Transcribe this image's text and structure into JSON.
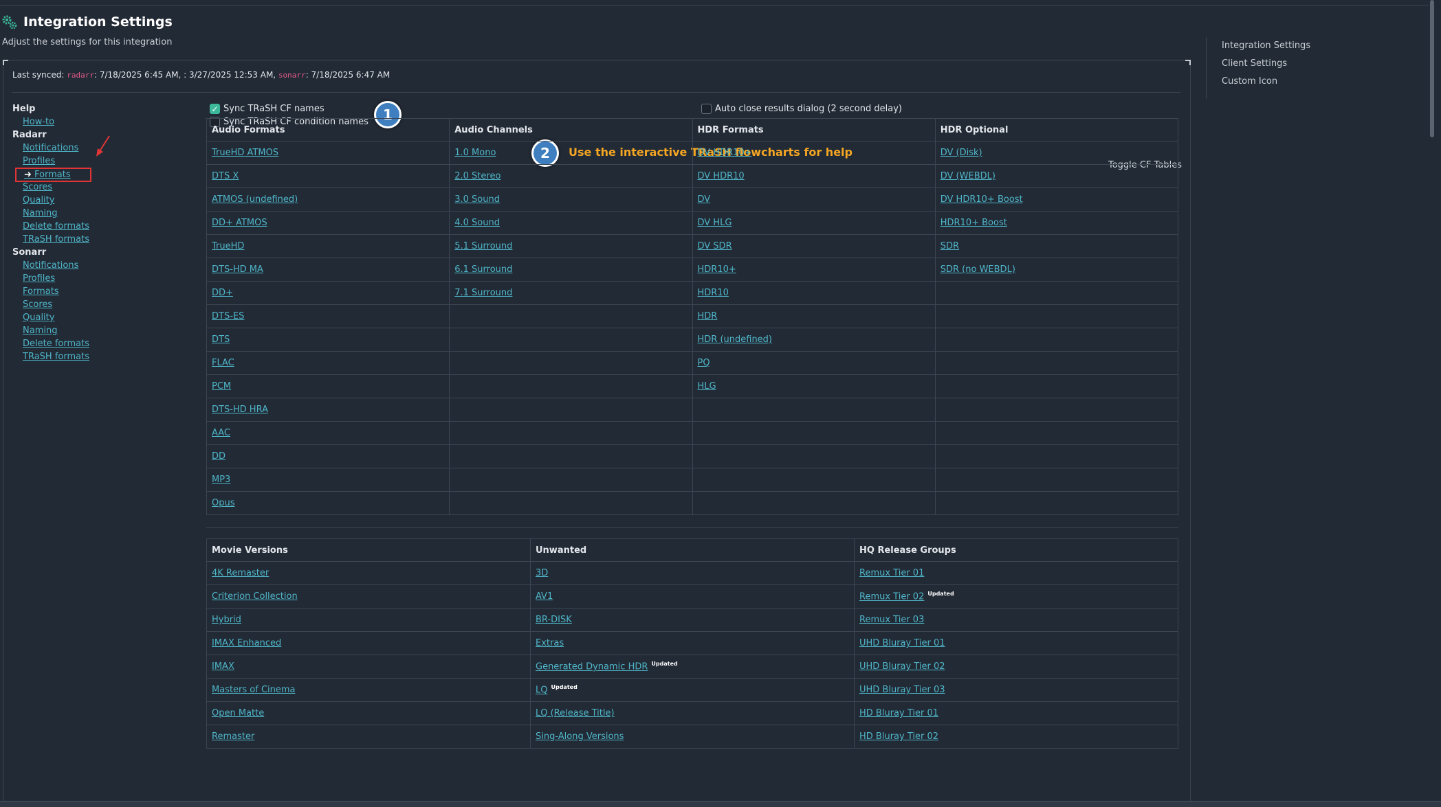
{
  "header": {
    "title": "Integration Settings",
    "subtitle": "Adjust the settings for this integration"
  },
  "last_synced": {
    "prefix": "Last synced: ",
    "radarr_tag": "radarr",
    "radarr_time": ": 7/18/2025 6:45 AM, ",
    "blank_time": ": 3/27/2025 12:53 AM, ",
    "sonarr_tag": "sonarr",
    "sonarr_time": ": 7/18/2025 6:47 AM"
  },
  "left_nav": {
    "help": {
      "label": "Help",
      "items": [
        "How-to"
      ]
    },
    "radarr": {
      "label": "Radarr",
      "items": [
        "Notifications",
        "Profiles",
        "Formats",
        "Scores",
        "Quality",
        "Naming",
        "Delete formats",
        "TRaSH formats"
      ],
      "active": "Formats"
    },
    "sonarr": {
      "label": "Sonarr",
      "items": [
        "Notifications",
        "Profiles",
        "Formats",
        "Scores",
        "Quality",
        "Naming",
        "Delete formats",
        "TRaSH formats"
      ]
    }
  },
  "options": {
    "sync_cf_names": {
      "label": "Sync TRaSH CF names",
      "checked": true
    },
    "sync_cf_condition_names": {
      "label": "Sync TRaSH CF condition names",
      "checked": false
    },
    "auto_close": {
      "label": "Auto close results dialog (2 second delay)",
      "checked": false
    }
  },
  "badges": {
    "one": "1",
    "two": "2"
  },
  "flowchart_link": "Use the interactive TRaSH flowcharts for help",
  "toggle_cf_tables": "Toggle CF Tables",
  "table1": {
    "headers": [
      "Audio Formats",
      "Audio Channels",
      "HDR Formats",
      "HDR Optional"
    ],
    "rows": [
      [
        "TrueHD ATMOS",
        "1.0 Mono",
        "DV HDR10+",
        "DV (Disk)"
      ],
      [
        "DTS X",
        "2.0 Stereo",
        "DV HDR10",
        "DV (WEBDL)"
      ],
      [
        "ATMOS (undefined)",
        "3.0 Sound",
        "DV",
        "DV HDR10+ Boost"
      ],
      [
        "DD+ ATMOS",
        "4.0 Sound",
        "DV HLG",
        "HDR10+ Boost"
      ],
      [
        "TrueHD",
        "5.1 Surround",
        "DV SDR",
        "SDR"
      ],
      [
        "DTS-HD MA",
        "6.1 Surround",
        "HDR10+",
        "SDR (no WEBDL)"
      ],
      [
        "DD+",
        "7.1 Surround",
        "HDR10",
        ""
      ],
      [
        "DTS-ES",
        "",
        "HDR",
        ""
      ],
      [
        "DTS",
        "",
        "HDR (undefined)",
        ""
      ],
      [
        "FLAC",
        "",
        "PQ",
        ""
      ],
      [
        "PCM",
        "",
        "HLG",
        ""
      ],
      [
        "DTS-HD HRA",
        "",
        "",
        ""
      ],
      [
        "AAC",
        "",
        "",
        ""
      ],
      [
        "DD",
        "",
        "",
        ""
      ],
      [
        "MP3",
        "",
        "",
        ""
      ],
      [
        "Opus",
        "",
        "",
        ""
      ]
    ]
  },
  "table2": {
    "headers": [
      "Movie Versions",
      "Unwanted",
      "HQ Release Groups"
    ],
    "updated_label": "Updated",
    "rows": [
      [
        {
          "t": "4K Remaster"
        },
        {
          "t": "3D"
        },
        {
          "t": "Remux Tier 01"
        }
      ],
      [
        {
          "t": "Criterion Collection"
        },
        {
          "t": "AV1"
        },
        {
          "t": "Remux Tier 02",
          "u": true
        }
      ],
      [
        {
          "t": "Hybrid"
        },
        {
          "t": "BR-DISK"
        },
        {
          "t": "Remux Tier 03"
        }
      ],
      [
        {
          "t": "IMAX Enhanced"
        },
        {
          "t": "Extras"
        },
        {
          "t": "UHD Bluray Tier 01"
        }
      ],
      [
        {
          "t": "IMAX"
        },
        {
          "t": "Generated Dynamic HDR",
          "u": true
        },
        {
          "t": "UHD Bluray Tier 02"
        }
      ],
      [
        {
          "t": "Masters of Cinema"
        },
        {
          "t": "LQ",
          "u": true
        },
        {
          "t": "UHD Bluray Tier 03"
        }
      ],
      [
        {
          "t": "Open Matte"
        },
        {
          "t": "LQ (Release Title)"
        },
        {
          "t": "HD Bluray Tier 01"
        }
      ],
      [
        {
          "t": "Remaster"
        },
        {
          "t": "Sing-Along Versions"
        },
        {
          "t": "HD Bluray Tier 02"
        }
      ]
    ]
  },
  "right_nav": [
    "Integration Settings",
    "Client Settings",
    "Custom Icon"
  ]
}
